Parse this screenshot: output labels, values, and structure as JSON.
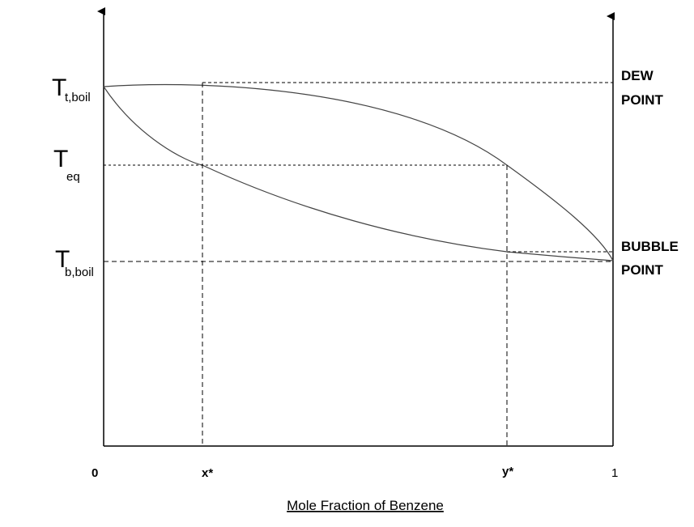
{
  "diagram": {
    "y_labels": {
      "t_boil": {
        "main": "T",
        "sub": "t,boil"
      },
      "t_eq": {
        "main": "T",
        "sub": "eq"
      },
      "b_boil": {
        "main": "T",
        "sub": "b,boil"
      }
    },
    "right_labels": {
      "dew": {
        "line1": "DEW",
        "line2": "POINT"
      },
      "bubble": {
        "line1": "BUBBLE",
        "line2": "POINT"
      }
    },
    "x_ticks": {
      "zero": "0",
      "x_star": "x*",
      "y_star": "y*",
      "one": "1"
    },
    "x_title": "Mole Fraction of Benzene"
  }
}
